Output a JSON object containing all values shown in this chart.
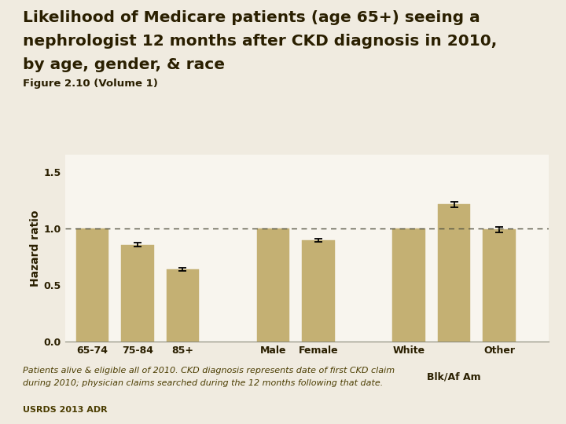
{
  "title_line1": "Likelihood of Medicare patients (age 65+) seeing a",
  "title_line2": "nephrologist 12 months after CKD diagnosis in 2010,",
  "title_line3": "by age, gender, & race",
  "subtitle": "Figure 2.10 (Volume 1)",
  "ylabel": "Hazard ratio",
  "bar_values": [
    1.0,
    0.855,
    0.635,
    1.0,
    0.895,
    1.0,
    1.21,
    0.99
  ],
  "bar_errors": [
    0.0,
    0.018,
    0.015,
    0.0,
    0.012,
    0.0,
    0.022,
    0.025
  ],
  "bar_color": "#C4B073",
  "bar_edgecolor": "#C4B073",
  "error_color": "black",
  "dashed_line_y": 1.0,
  "ylim": [
    0.0,
    1.65
  ],
  "yticks": [
    0.0,
    0.5,
    1.0,
    1.5
  ],
  "ytick_labels": [
    "0.0",
    "0.5",
    "1.0",
    "1.5"
  ],
  "background_color": "#f0ebe0",
  "plot_background": "#f8f5ee",
  "footnote1": "Patients alive & eligible all of 2010. CKD diagnosis represents date of first CKD claim",
  "footnote2": "during 2010; physician claims searched during the 12 months following that date.",
  "source": "USRDS 2013 ADR",
  "title_fontsize": 14.5,
  "subtitle_fontsize": 9.5,
  "axis_fontsize": 10,
  "tick_fontsize": 9,
  "footnote_fontsize": 8,
  "source_fontsize": 8,
  "title_color": "#2a1f00",
  "subtitle_color": "#2a1f00",
  "axis_label_color": "#2a1f00",
  "tick_color": "#2a1f00",
  "footnote_color": "#4a3c00",
  "source_color": "#4a3c00",
  "group_positions": [
    0,
    1,
    2,
    4,
    5,
    7,
    8,
    9
  ],
  "xlim": [
    -0.6,
    10.1
  ],
  "bar_width": 0.72
}
